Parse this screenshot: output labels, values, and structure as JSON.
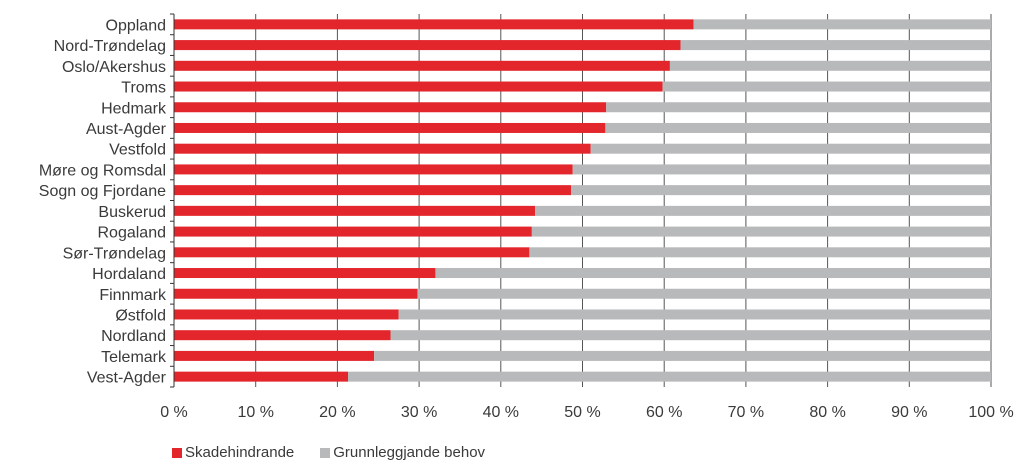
{
  "chart_data": {
    "type": "bar",
    "orientation": "horizontal",
    "stacked": true,
    "categories": [
      "Oppland",
      "Nord-Trøndelag",
      "Oslo/Akershus",
      "Troms",
      "Hedmark",
      "Aust-Agder",
      "Vestfold",
      "Møre og Romsdal",
      "Sogn og Fjordane",
      "Buskerud",
      "Rogaland",
      "Sør-Trøndelag",
      "Hordaland",
      "Finnmark",
      "Østfold",
      "Nordland",
      "Telemark",
      "Vest-Agder"
    ],
    "series": [
      {
        "name": "Skadehindrande",
        "color": "#e3262b",
        "values": [
          63.6,
          62.0,
          60.7,
          59.8,
          52.9,
          52.8,
          51.0,
          48.8,
          48.6,
          44.2,
          43.8,
          43.5,
          32.0,
          29.8,
          27.5,
          26.5,
          24.5,
          21.3
        ]
      },
      {
        "name": "Grunnleggjande behov",
        "color": "#b8b9bb",
        "values": [
          36.4,
          38.0,
          39.3,
          40.2,
          47.1,
          47.2,
          49.0,
          51.2,
          51.4,
          55.8,
          56.2,
          56.5,
          68.0,
          70.2,
          72.5,
          73.5,
          75.5,
          78.7
        ]
      }
    ],
    "x_ticks": [
      "0 %",
      "10 %",
      "20 %",
      "30 %",
      "40 %",
      "50 %",
      "60 %",
      "70 %",
      "80 %",
      "90 %",
      "100 %"
    ],
    "xlim": [
      0,
      100
    ],
    "grid": "vertical",
    "legend_position": "bottom-left"
  }
}
